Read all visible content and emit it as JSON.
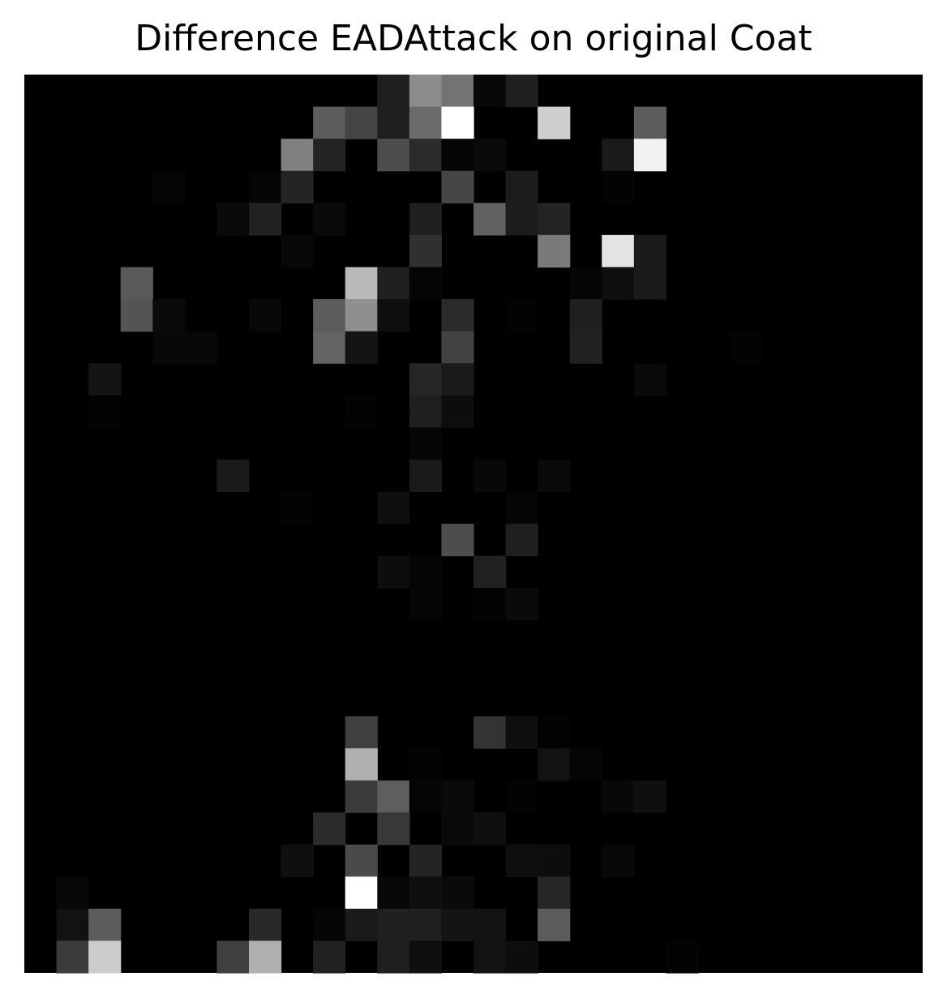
{
  "chart_data": {
    "type": "heatmap",
    "title": "Difference EADAttack on original Coat",
    "colormap": "gray",
    "grid": false,
    "rows": 28,
    "cols": 28,
    "value_range": [
      0,
      1
    ],
    "cells": [
      [
        11,
        0,
        0.12
      ],
      [
        12,
        0,
        0.55
      ],
      [
        13,
        0,
        0.45
      ],
      [
        14,
        0,
        0.03
      ],
      [
        15,
        0,
        0.12
      ],
      [
        9,
        1,
        0.36
      ],
      [
        10,
        1,
        0.27
      ],
      [
        11,
        1,
        0.12
      ],
      [
        12,
        1,
        0.42
      ],
      [
        13,
        1,
        1.0
      ],
      [
        16,
        1,
        0.81
      ],
      [
        19,
        1,
        0.36
      ],
      [
        8,
        2,
        0.5
      ],
      [
        9,
        2,
        0.14
      ],
      [
        11,
        2,
        0.3
      ],
      [
        12,
        2,
        0.17
      ],
      [
        13,
        2,
        0.02
      ],
      [
        14,
        2,
        0.04
      ],
      [
        18,
        2,
        0.1
      ],
      [
        19,
        2,
        0.95
      ],
      [
        4,
        3,
        0.02
      ],
      [
        7,
        3,
        0.02
      ],
      [
        8,
        3,
        0.14
      ],
      [
        13,
        3,
        0.27
      ],
      [
        15,
        3,
        0.11
      ],
      [
        18,
        3,
        0.01
      ],
      [
        6,
        4,
        0.04
      ],
      [
        7,
        4,
        0.13
      ],
      [
        9,
        4,
        0.04
      ],
      [
        12,
        4,
        0.12
      ],
      [
        14,
        4,
        0.38
      ],
      [
        15,
        4,
        0.11
      ],
      [
        16,
        4,
        0.14
      ],
      [
        8,
        5,
        0.03
      ],
      [
        12,
        5,
        0.19
      ],
      [
        16,
        5,
        0.48
      ],
      [
        18,
        5,
        0.89
      ],
      [
        19,
        5,
        0.1
      ],
      [
        3,
        6,
        0.35
      ],
      [
        10,
        6,
        0.73
      ],
      [
        11,
        6,
        0.12
      ],
      [
        12,
        6,
        0.02
      ],
      [
        17,
        6,
        0.02
      ],
      [
        18,
        6,
        0.06
      ],
      [
        19,
        6,
        0.1
      ],
      [
        3,
        7,
        0.33
      ],
      [
        4,
        7,
        0.04
      ],
      [
        7,
        7,
        0.03
      ],
      [
        9,
        7,
        0.36
      ],
      [
        10,
        7,
        0.56
      ],
      [
        11,
        7,
        0.06
      ],
      [
        13,
        7,
        0.17
      ],
      [
        15,
        7,
        0.01
      ],
      [
        17,
        7,
        0.12
      ],
      [
        4,
        8,
        0.03
      ],
      [
        5,
        8,
        0.03
      ],
      [
        9,
        8,
        0.39
      ],
      [
        10,
        8,
        0.08
      ],
      [
        13,
        8,
        0.26
      ],
      [
        17,
        8,
        0.13
      ],
      [
        22,
        8,
        0.01
      ],
      [
        2,
        9,
        0.08
      ],
      [
        12,
        9,
        0.15
      ],
      [
        13,
        9,
        0.1
      ],
      [
        19,
        9,
        0.04
      ],
      [
        2,
        10,
        0.01
      ],
      [
        10,
        10,
        0.01
      ],
      [
        12,
        10,
        0.12
      ],
      [
        13,
        10,
        0.05
      ],
      [
        12,
        11,
        0.02
      ],
      [
        6,
        12,
        0.1
      ],
      [
        12,
        12,
        0.1
      ],
      [
        14,
        12,
        0.03
      ],
      [
        16,
        12,
        0.04
      ],
      [
        8,
        13,
        0.01
      ],
      [
        11,
        13,
        0.06
      ],
      [
        15,
        13,
        0.02
      ],
      [
        13,
        14,
        0.3
      ],
      [
        15,
        14,
        0.12
      ],
      [
        11,
        15,
        0.05
      ],
      [
        12,
        15,
        0.02
      ],
      [
        14,
        15,
        0.13
      ],
      [
        12,
        16,
        0.02
      ],
      [
        14,
        16,
        0.01
      ],
      [
        15,
        16,
        0.04
      ],
      [
        10,
        20,
        0.25
      ],
      [
        14,
        20,
        0.2
      ],
      [
        15,
        20,
        0.06
      ],
      [
        16,
        20,
        0.01
      ],
      [
        10,
        21,
        0.69
      ],
      [
        12,
        21,
        0.01
      ],
      [
        16,
        21,
        0.07
      ],
      [
        17,
        21,
        0.02
      ],
      [
        10,
        22,
        0.23
      ],
      [
        11,
        22,
        0.37
      ],
      [
        12,
        22,
        0.02
      ],
      [
        13,
        22,
        0.04
      ],
      [
        15,
        22,
        0.01
      ],
      [
        18,
        22,
        0.03
      ],
      [
        19,
        22,
        0.06
      ],
      [
        9,
        23,
        0.17
      ],
      [
        11,
        23,
        0.22
      ],
      [
        13,
        23,
        0.04
      ],
      [
        14,
        23,
        0.06
      ],
      [
        8,
        24,
        0.06
      ],
      [
        10,
        24,
        0.29
      ],
      [
        12,
        24,
        0.14
      ],
      [
        15,
        24,
        0.06
      ],
      [
        16,
        24,
        0.05
      ],
      [
        18,
        24,
        0.03
      ],
      [
        1,
        25,
        0.03
      ],
      [
        10,
        25,
        1.0
      ],
      [
        11,
        25,
        0.03
      ],
      [
        12,
        25,
        0.06
      ],
      [
        13,
        25,
        0.04
      ],
      [
        16,
        25,
        0.15
      ],
      [
        1,
        26,
        0.07
      ],
      [
        2,
        26,
        0.36
      ],
      [
        7,
        26,
        0.16
      ],
      [
        9,
        26,
        0.02
      ],
      [
        10,
        26,
        0.1
      ],
      [
        11,
        26,
        0.12
      ],
      [
        12,
        26,
        0.12
      ],
      [
        13,
        26,
        0.08
      ],
      [
        14,
        26,
        0.07
      ],
      [
        16,
        26,
        0.36
      ],
      [
        1,
        27,
        0.23
      ],
      [
        2,
        27,
        0.8
      ],
      [
        6,
        27,
        0.25
      ],
      [
        7,
        27,
        0.69
      ],
      [
        9,
        27,
        0.13
      ],
      [
        11,
        27,
        0.12
      ],
      [
        12,
        27,
        0.06
      ],
      [
        14,
        27,
        0.07
      ],
      [
        15,
        27,
        0.05
      ],
      [
        20,
        27,
        0.01
      ]
    ]
  }
}
